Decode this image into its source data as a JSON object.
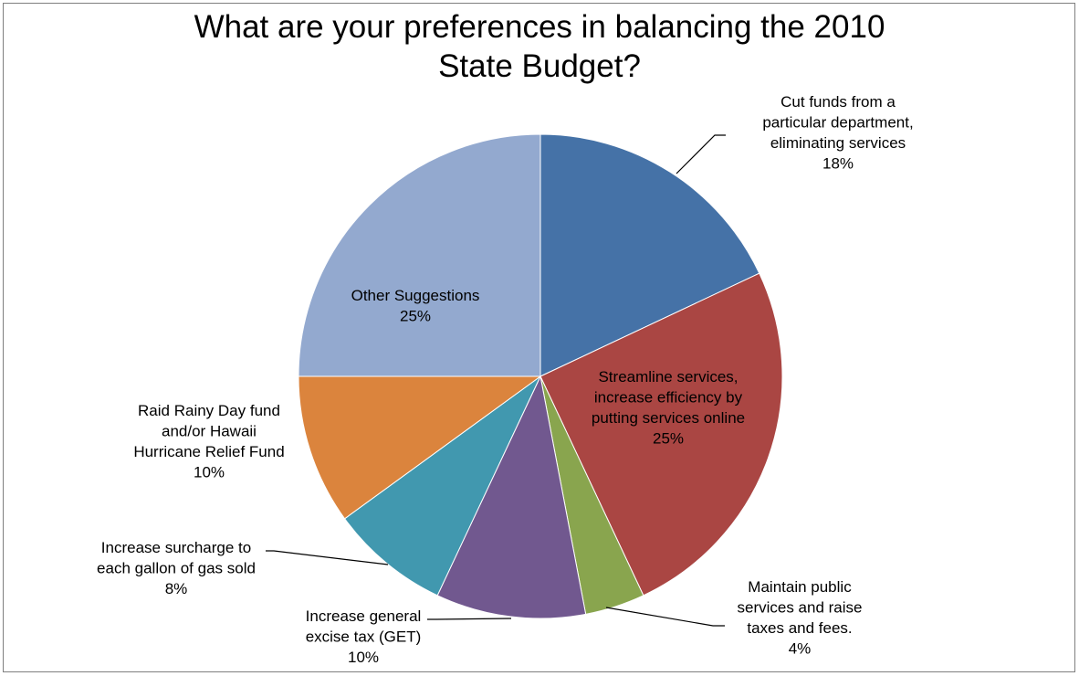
{
  "chart_data": {
    "type": "pie",
    "title_lines": [
      "What are your preferences in balancing the 2010",
      "State Budget?"
    ],
    "start_angle_deg": 0,
    "direction": "clockwise",
    "slices": [
      {
        "label_lines": [
          "Cut funds from a",
          "particular department,",
          "eliminating services"
        ],
        "pct_text": "18%",
        "value": 18,
        "color": "#4572a7"
      },
      {
        "label_lines": [
          "Streamline services,",
          "increase efficiency by",
          "putting services online"
        ],
        "pct_text": "25%",
        "value": 25,
        "color": "#aa4643"
      },
      {
        "label_lines": [
          "Maintain public",
          "services and raise",
          "taxes and fees."
        ],
        "pct_text": "4%",
        "value": 4,
        "color": "#89a54e"
      },
      {
        "label_lines": [
          "Increase general",
          "excise tax (GET)"
        ],
        "pct_text": "10%",
        "value": 10,
        "color": "#71588f"
      },
      {
        "label_lines": [
          "Increase surcharge to",
          "each gallon of gas sold"
        ],
        "pct_text": "8%",
        "value": 8,
        "color": "#4198af"
      },
      {
        "label_lines": [
          "Raid Rainy Day fund",
          "and/or Hawaii",
          "Hurricane Relief Fund"
        ],
        "pct_text": "10%",
        "value": 10,
        "color": "#db843d"
      },
      {
        "label_lines": [
          "Other Suggestions"
        ],
        "pct_text": "25%",
        "value": 25,
        "color": "#93a9cf"
      }
    ]
  }
}
